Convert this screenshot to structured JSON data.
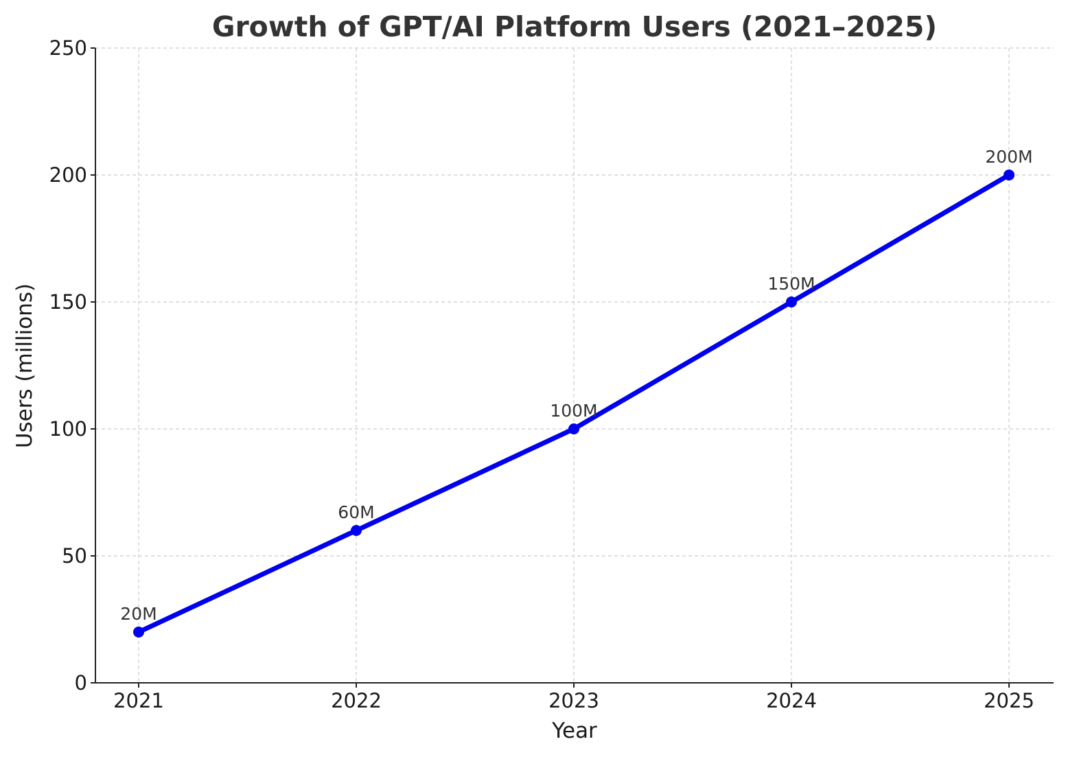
{
  "chart_data": {
    "type": "line",
    "title": "Growth of GPT/AI Platform Users (2021–2025)",
    "xlabel": "Year",
    "ylabel": "Users (millions)",
    "categories": [
      "2021",
      "2022",
      "2023",
      "2024",
      "2025"
    ],
    "series": [
      {
        "values": [
          20,
          60,
          100,
          150,
          200
        ],
        "labels": [
          "20M",
          "60M",
          "100M",
          "150M",
          "200M"
        ],
        "color": "#0000ee",
        "marker": "circle"
      }
    ],
    "ylim": [
      0,
      250
    ],
    "yticks": [
      0,
      50,
      100,
      150,
      200,
      250
    ],
    "grid": true,
    "grid_style": "dashed"
  }
}
